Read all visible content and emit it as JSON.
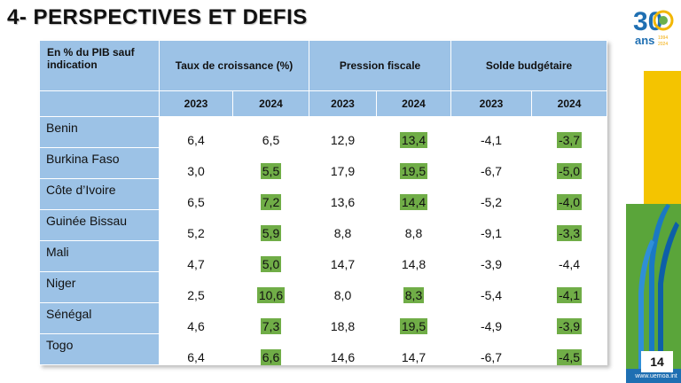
{
  "page": {
    "title": "4- PERSPECTIVES ET DEFIS",
    "page_number": "14",
    "website": "www.uemoa.int"
  },
  "logo": {
    "number": "30",
    "word": "ans",
    "year_start": "1994",
    "year_end": "2024"
  },
  "table": {
    "corner_label": "En % du PIB sauf indication",
    "groups": [
      "Taux de croissance (%)",
      "Pression fiscale",
      "Solde budgétaire"
    ],
    "years": [
      "2023",
      "2024",
      "2023",
      "2024",
      "2023",
      "2024"
    ],
    "highlight_color": "#70ad47",
    "header_color": "#9cc2e6",
    "rows": [
      {
        "country": "Benin",
        "values": [
          "6,4",
          "6,5",
          "12,9",
          "13,4",
          "-4,1",
          "-3,7"
        ],
        "highlight": [
          false,
          false,
          false,
          true,
          false,
          true
        ]
      },
      {
        "country": "Burkina Faso",
        "values": [
          "3,0",
          "5,5",
          "17,9",
          "19,5",
          "-6,7",
          "-5,0"
        ],
        "highlight": [
          false,
          true,
          false,
          true,
          false,
          true
        ]
      },
      {
        "country": "Côte d’Ivoire",
        "values": [
          "6,5",
          "7,2",
          "13,6",
          "14,4",
          "-5,2",
          "-4,0"
        ],
        "highlight": [
          false,
          true,
          false,
          true,
          false,
          true
        ]
      },
      {
        "country": "Guinée Bissau",
        "values": [
          "5,2",
          "5,9",
          "8,8",
          "8,8",
          "-9,1",
          "-3,3"
        ],
        "highlight": [
          false,
          true,
          false,
          false,
          false,
          true
        ]
      },
      {
        "country": "Mali",
        "values": [
          "4,7",
          "5,0",
          "14,7",
          "14,8",
          "-3,9",
          "-4,4"
        ],
        "highlight": [
          false,
          true,
          false,
          false,
          false,
          false
        ]
      },
      {
        "country": "Niger",
        "values": [
          "2,5",
          "10,6",
          "8,0",
          "8,3",
          "-5,4",
          "-4,1"
        ],
        "highlight": [
          false,
          true,
          false,
          true,
          false,
          true
        ]
      },
      {
        "country": "Sénégal",
        "values": [
          "4,6",
          "7,3",
          "18,8",
          "19,5",
          "-4,9",
          "-3,9"
        ],
        "highlight": [
          false,
          true,
          false,
          true,
          false,
          true
        ]
      },
      {
        "country": "Togo",
        "values": [
          "6,4",
          "6,6",
          "14,6",
          "14,7",
          "-6,7",
          "-4,5"
        ],
        "highlight": [
          false,
          true,
          false,
          false,
          false,
          true
        ]
      }
    ]
  }
}
